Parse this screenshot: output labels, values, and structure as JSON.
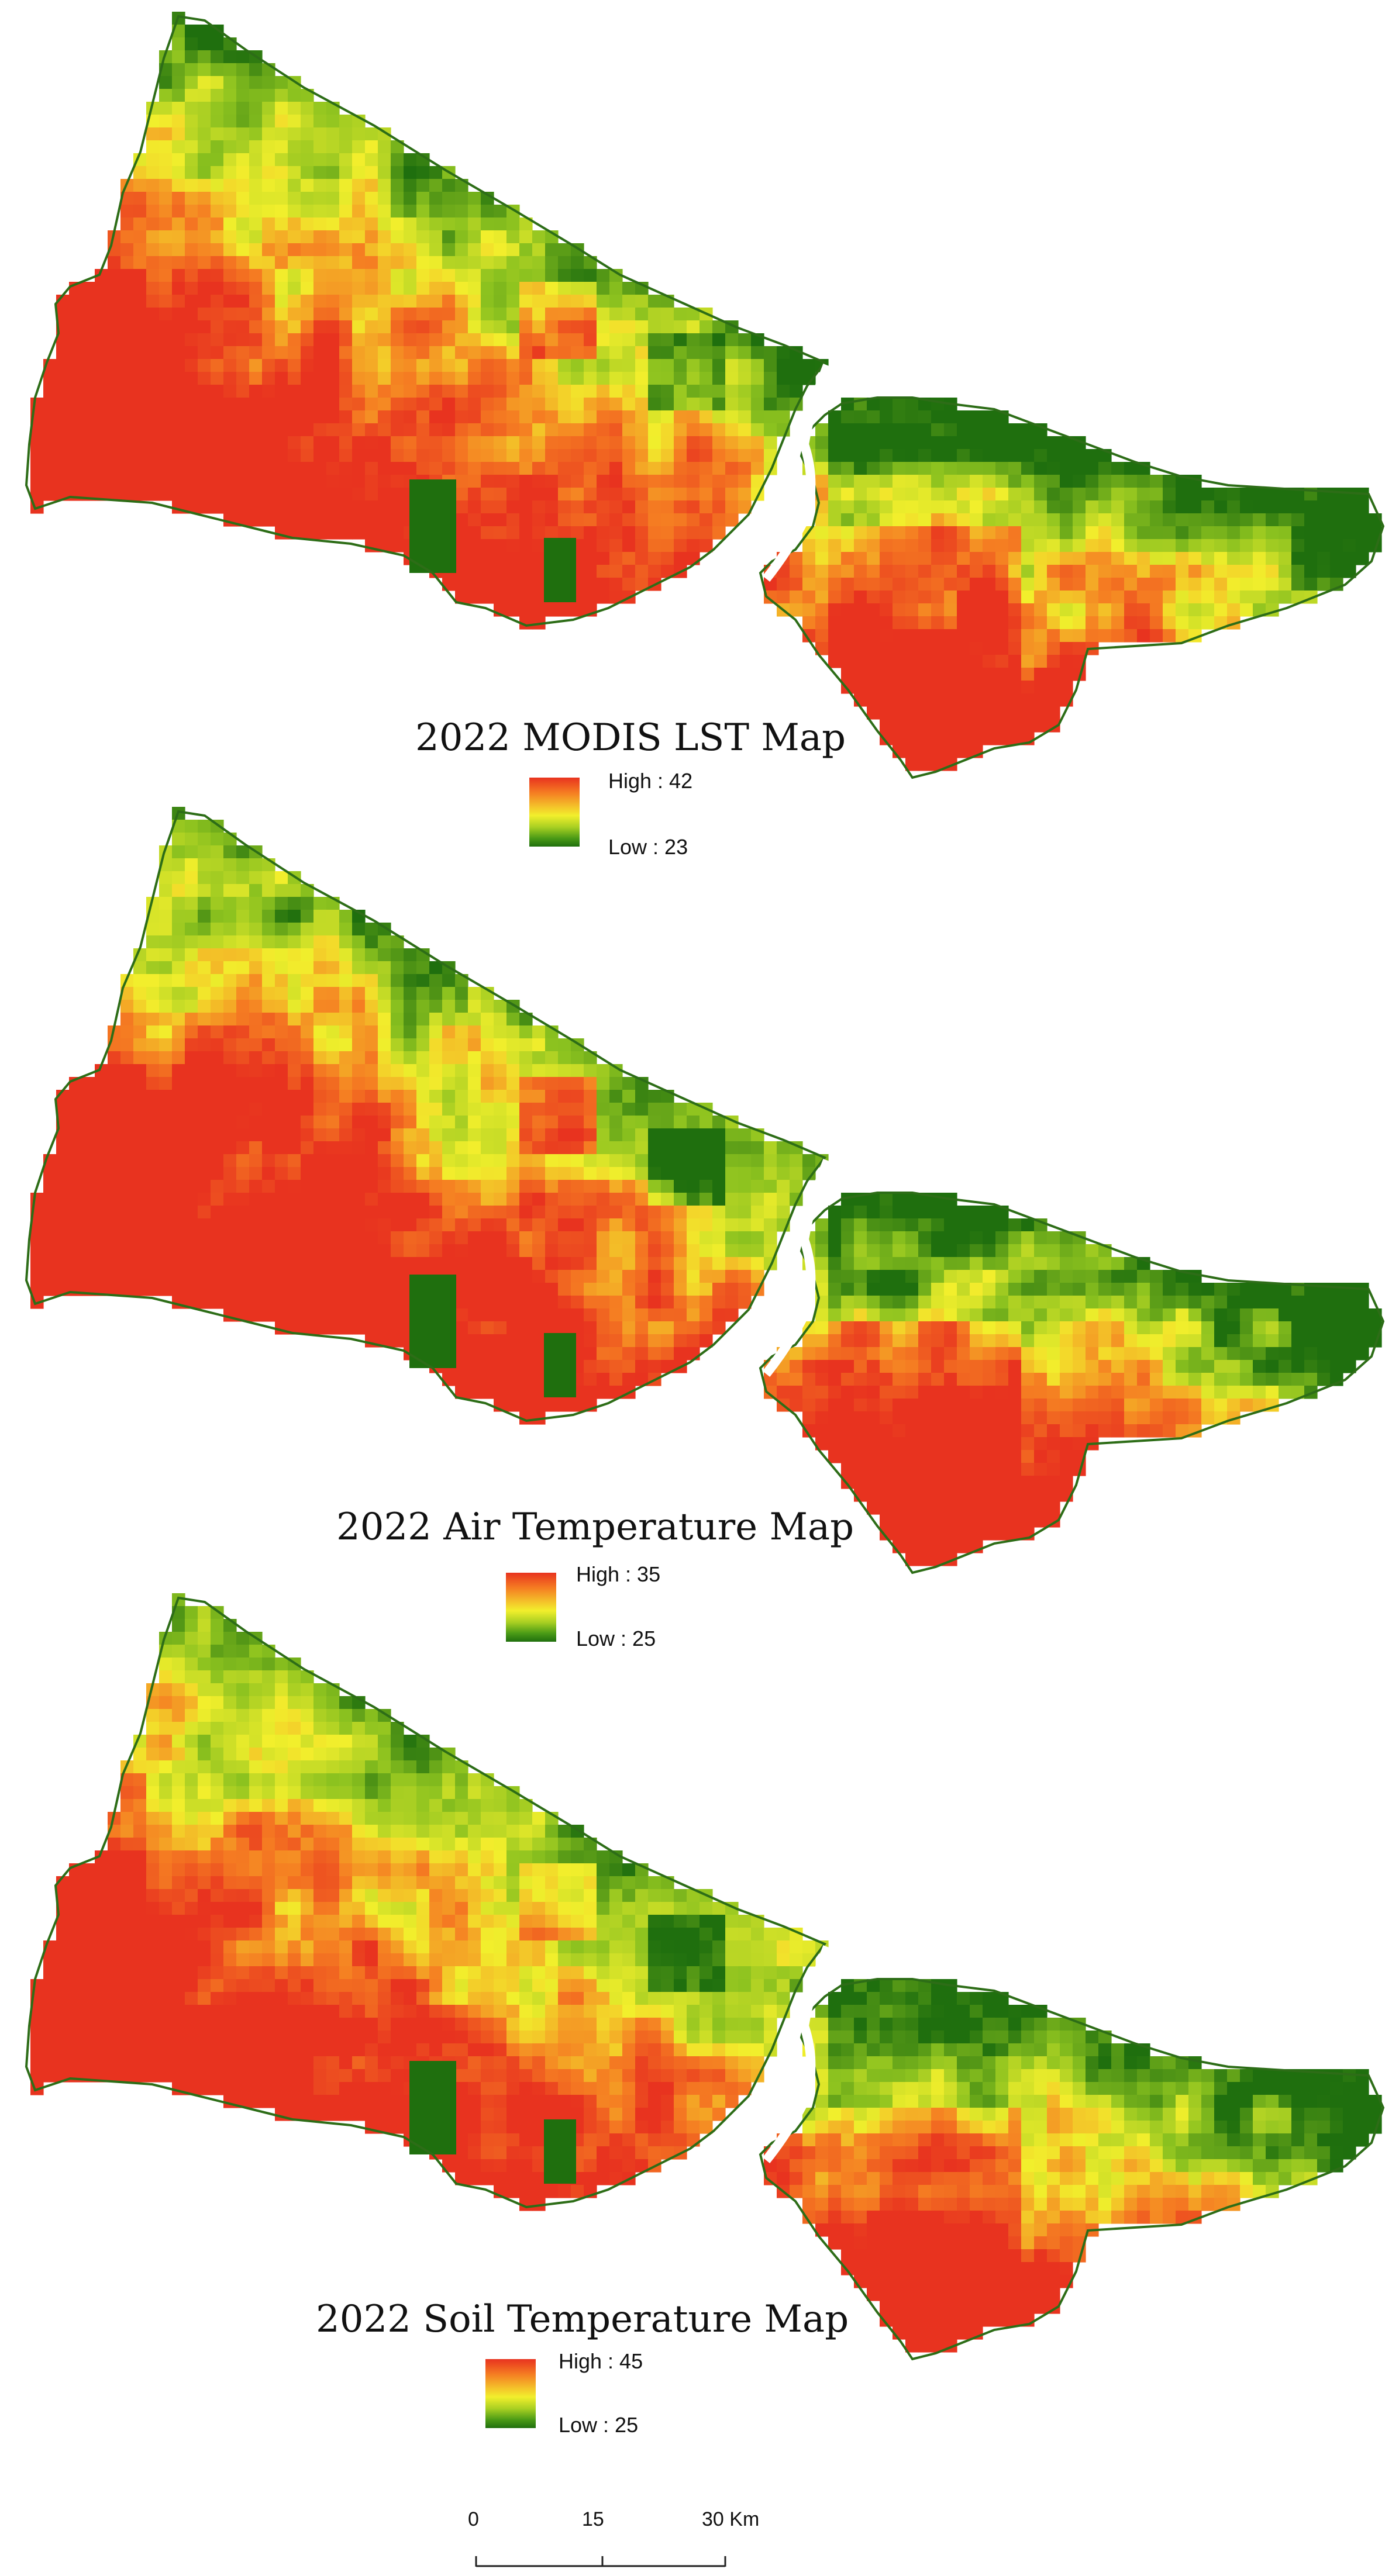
{
  "maps": [
    {
      "title": "2022 MODIS LST Map",
      "legend": {
        "high_label": "High : 42",
        "low_label": "Low : 23"
      },
      "hot_bias": 1.0
    },
    {
      "title": "2022 Air Temperature Map",
      "legend": {
        "high_label": "High : 35",
        "low_label": "Low : 25"
      },
      "hot_bias": 1.05
    },
    {
      "title": "2022 Soil Temperature Map",
      "legend": {
        "high_label": "High : 45",
        "low_label": "Low : 25"
      },
      "hot_bias": 0.95
    }
  ],
  "scale_bar": {
    "labels": [
      "0",
      "15",
      "30 Km"
    ]
  },
  "colors": {
    "high": "#e8331f",
    "mid_high": "#f57d22",
    "mid": "#f2ef2c",
    "mid_low": "#8cc21f",
    "low": "#1f6f0e",
    "water": "#ffffff"
  }
}
